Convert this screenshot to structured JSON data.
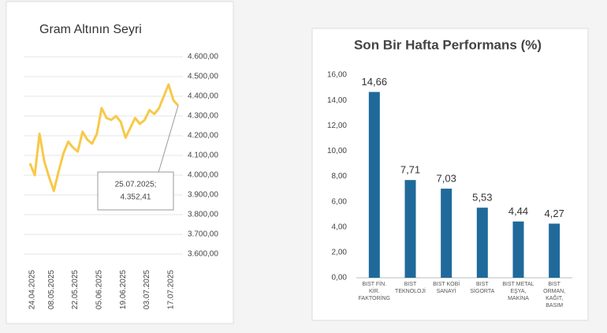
{
  "chart_data": [
    {
      "type": "line",
      "title": "Gram Altının Seyri",
      "categories": [
        "24.04.2025",
        null,
        null,
        null,
        "08.05.2025",
        null,
        null,
        null,
        null,
        "22.05.2025",
        null,
        null,
        null,
        null,
        "05.06.2025",
        null,
        null,
        null,
        null,
        "19.06.2025",
        null,
        null,
        null,
        null,
        "03.07.2025",
        null,
        null,
        null,
        null,
        "17.07.2025",
        null,
        null
      ],
      "series": [
        {
          "name": "Gram Altın",
          "color": "#f7c948",
          "values": [
            4060,
            4000,
            4210,
            4070,
            3990,
            3920,
            4020,
            4110,
            4170,
            4140,
            4120,
            4220,
            4180,
            4160,
            4210,
            4340,
            4290,
            4280,
            4300,
            4270,
            4190,
            4240,
            4290,
            4260,
            4280,
            4330,
            4310,
            4340,
            4400,
            4460,
            4380,
            4352.41
          ]
        }
      ],
      "annotation": [
        "25.07.2025;",
        "4.352,41"
      ],
      "ylim": [
        3600,
        4600
      ],
      "yticks": [
        {
          "value": 3600,
          "label": "3.600,00"
        },
        {
          "value": 3700,
          "label": "3.700,00"
        },
        {
          "value": 3800,
          "label": "3.800,00"
        },
        {
          "value": 3900,
          "label": "3.900,00"
        },
        {
          "value": 4000,
          "label": "4.000,00"
        },
        {
          "value": 4100,
          "label": "4.100,00"
        },
        {
          "value": 4200,
          "label": "4.200,00"
        },
        {
          "value": 4300,
          "label": "4.300,00"
        },
        {
          "value": 4400,
          "label": "4.400,00"
        },
        {
          "value": 4500,
          "label": "4.500,00"
        },
        {
          "value": 4600,
          "label": "4.600,00"
        }
      ],
      "grid": true
    },
    {
      "type": "bar",
      "title": "Son Bir Hafta Performans (%)",
      "categories": [
        "BIST FİN. KİR. FAKTORİNG",
        "BIST TEKNOLOJİ",
        "BIST KOBİ SANAYİ",
        "BIST SİGORTA",
        "BIST METAL EŞYA, MAKİNA",
        "BIST ORMAN, KAĞIT, BASIM"
      ],
      "values": [
        14.66,
        7.71,
        7.03,
        5.53,
        4.44,
        4.27
      ],
      "value_labels": [
        "14,66",
        "7,71",
        "7,03",
        "5,53",
        "4,44",
        "4,27"
      ],
      "color": "#1f6a9a",
      "ylim": [
        0,
        16
      ],
      "yticks": [
        {
          "value": 0,
          "label": "0,00"
        },
        {
          "value": 2,
          "label": "2,00"
        },
        {
          "value": 4,
          "label": "4,00"
        },
        {
          "value": 6,
          "label": "6,00"
        },
        {
          "value": 8,
          "label": "8,00"
        },
        {
          "value": 10,
          "label": "10,00"
        },
        {
          "value": 12,
          "label": "12,00"
        },
        {
          "value": 14,
          "label": "14,00"
        },
        {
          "value": 16,
          "label": "16,00"
        }
      ],
      "grid": false
    }
  ]
}
